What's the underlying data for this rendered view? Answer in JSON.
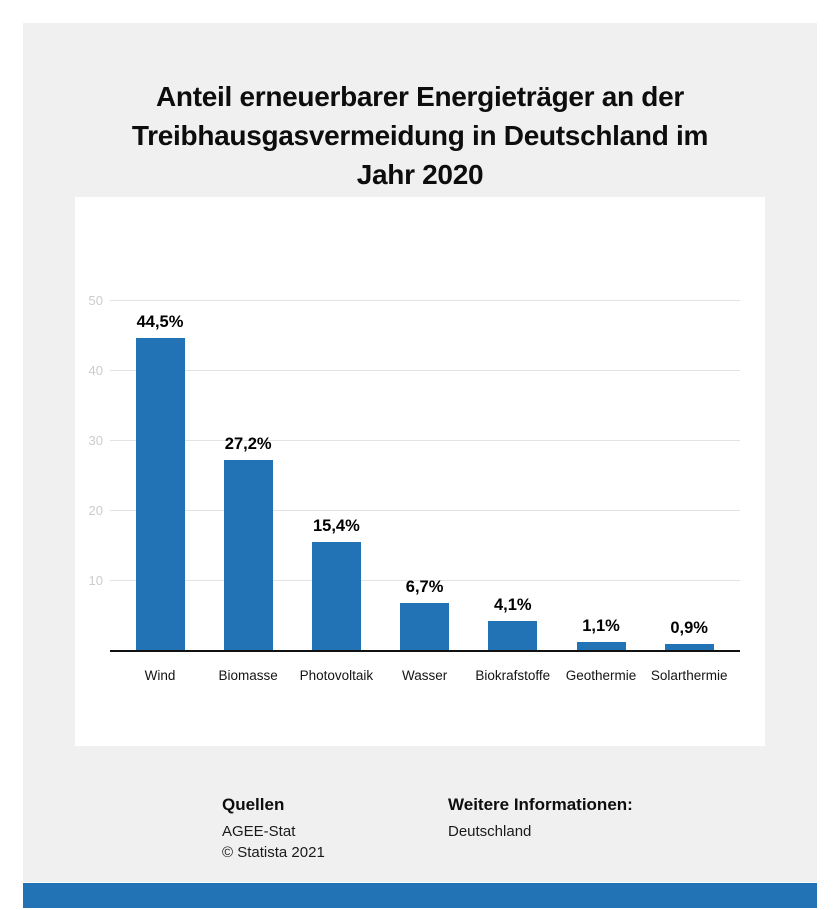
{
  "title": {
    "lines": [
      "Anteil erneuerbarer Energieträger an der",
      "Treibhausgasvermeidung in Deutschland im",
      "Jahr 2020"
    ]
  },
  "chart_data": {
    "type": "bar",
    "title": "Anteil erneuerbarer Energieträger an der Treibhausgasvermeidung in Deutschland im Jahr 2020",
    "categories": [
      "Wind",
      "Biomasse",
      "Photovoltaik",
      "Wasser",
      "Biokrafstoffe",
      "Geothermie",
      "Solarthermie"
    ],
    "values": [
      44.5,
      27.2,
      15.4,
      6.7,
      4.1,
      1.1,
      0.9
    ],
    "value_labels": [
      "44,5%",
      "27,2%",
      "15,4%",
      "6,7%",
      "4,1%",
      "1,1%",
      "0,9%"
    ],
    "unit": "%",
    "xlabel": "",
    "ylabel": "",
    "yticks": [
      10,
      20,
      30,
      40,
      50
    ],
    "ytick_labels": [
      "10",
      "20",
      "30",
      "40",
      "50"
    ],
    "ylim": [
      0,
      50
    ],
    "grid": "horizontal",
    "legend": "none",
    "bar_color": "#2173b5"
  },
  "footer": {
    "sources_heading": "Quellen",
    "sources": [
      "AGEE-Stat",
      "© Statista 2021"
    ],
    "info_heading": "Weitere Informationen:",
    "info": "Deutschland"
  },
  "colors": {
    "accent_blue": "#2173b5",
    "card_bg": "#f0f0f0",
    "chart_bg": "#ffffff",
    "grid_line": "#e3e3e3",
    "tick_label": "#cccccc",
    "axis_line": "#111111"
  }
}
